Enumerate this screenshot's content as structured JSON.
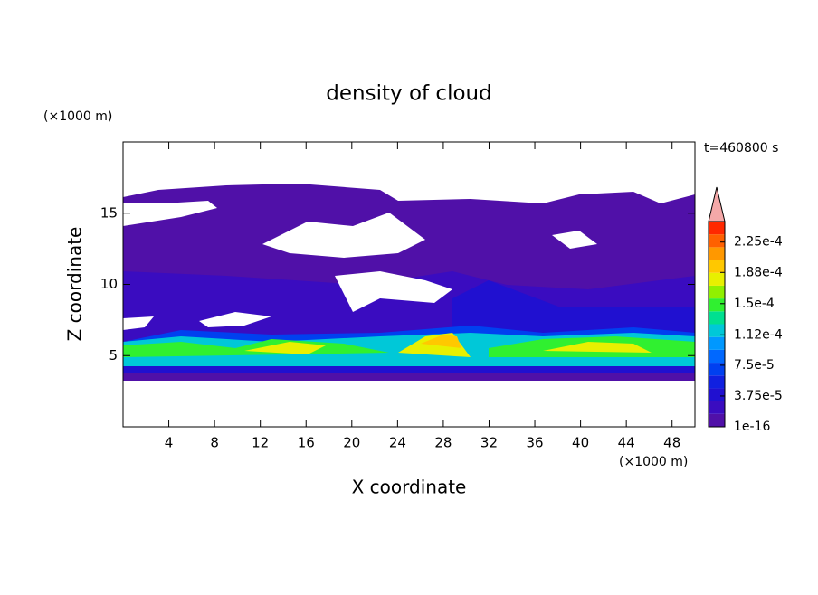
{
  "chart_data": {
    "type": "contour",
    "title": "density of cloud",
    "time_label": "t=460800 s",
    "x_label": "X coordinate",
    "y_label": "Z coordinate",
    "x_unit": "(×1000 m)",
    "y_unit": "(×1000 m)",
    "xlim": [
      0,
      50
    ],
    "xticks": [
      4,
      8,
      12,
      16,
      20,
      24,
      28,
      32,
      36,
      40,
      44,
      48
    ],
    "ylim": [
      0,
      20
    ],
    "yticks": [
      5,
      10,
      15
    ],
    "clim": [
      0,
      0.00025
    ],
    "cticks": [
      1e-16,
      {
        "value": 3.75e-05,
        "label": "3.75e-5"
      },
      {
        "value": 7.5e-05,
        "label": "7.5e-5"
      },
      {
        "value": 0.000112,
        "label": "1.12e-4"
      },
      {
        "value": 0.00015,
        "label": "1.5e-4"
      },
      {
        "value": 0.000188,
        "label": "1.88e-4"
      },
      {
        "value": 0.000225,
        "label": "2.25e-4"
      }
    ],
    "colors": [
      "#5010a8",
      "#3a0cc0",
      "#2010d0",
      "#1020e0",
      "#0040f0",
      "#0068ff",
      "#0098ff",
      "#00c8d8",
      "#00e090",
      "#30f030",
      "#90f000",
      "#e8f000",
      "#ffc800",
      "#ff9800",
      "#ff6000",
      "#ff2800"
    ],
    "extend_color": "#f4a8a8"
  }
}
